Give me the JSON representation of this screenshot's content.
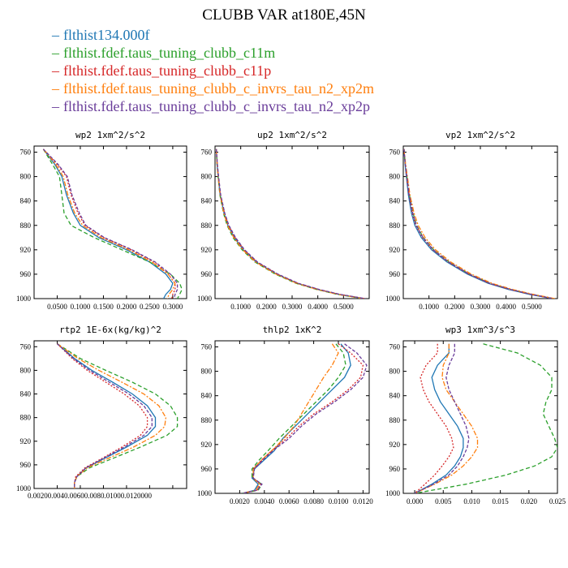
{
  "title": "CLUBB VAR at180E,45N",
  "legend": [
    {
      "label": "flthist134.000f",
      "color": "#1f77b4"
    },
    {
      "label": "flthist.fdef.taus_tuning_clubb_c11m",
      "color": "#2ca02c"
    },
    {
      "label": "flthist.fdef.taus_tuning_clubb_c11p",
      "color": "#d62728"
    },
    {
      "label": "flthist.fdef.taus_tuning_clubb_c_invrs_tau_n2_xp2m",
      "color": "#ff7f0e"
    },
    {
      "label": "flthist.fdef.taus_tuning_clubb_c_invrs_tau_n2_xp2p",
      "color": "#6a3d9a"
    }
  ],
  "chart_data": [
    {
      "type": "line",
      "title": "wp2  1xm^2/s^2",
      "ylim": [
        1000,
        750
      ],
      "yticks": [
        760,
        800,
        840,
        880,
        920,
        960,
        1000
      ],
      "xlim": [
        0.0,
        0.33
      ],
      "xticks": [
        "0.0500",
        "0.1000",
        "0.1500",
        "0.2000",
        "0.2500",
        "0.3000"
      ],
      "xtick_values": [
        0.05,
        0.1,
        0.15,
        0.2,
        0.25,
        0.3
      ],
      "y": [
        755,
        780,
        800,
        830,
        860,
        880,
        900,
        920,
        940,
        960,
        975,
        985,
        993,
        1000
      ],
      "series": [
        {
          "values": [
            0.02,
            0.045,
            0.06,
            0.07,
            0.085,
            0.1,
            0.14,
            0.2,
            0.25,
            0.285,
            0.3,
            0.295,
            0.285,
            0.28
          ]
        },
        {
          "values": [
            0.02,
            0.04,
            0.055,
            0.06,
            0.065,
            0.08,
            0.13,
            0.19,
            0.25,
            0.295,
            0.315,
            0.32,
            0.315,
            0.31
          ]
        },
        {
          "values": [
            0.02,
            0.05,
            0.07,
            0.08,
            0.095,
            0.11,
            0.15,
            0.21,
            0.26,
            0.29,
            0.305,
            0.305,
            0.3,
            0.298
          ]
        },
        {
          "values": [
            0.02,
            0.047,
            0.063,
            0.073,
            0.088,
            0.105,
            0.145,
            0.205,
            0.255,
            0.29,
            0.305,
            0.3,
            0.292,
            0.288
          ]
        },
        {
          "values": [
            0.02,
            0.052,
            0.072,
            0.082,
            0.098,
            0.112,
            0.152,
            0.212,
            0.262,
            0.295,
            0.31,
            0.31,
            0.305,
            0.303
          ]
        }
      ]
    },
    {
      "type": "line",
      "title": "up2  1xm^2/s^2",
      "ylim": [
        1000,
        750
      ],
      "yticks": [
        760,
        800,
        840,
        880,
        920,
        960,
        1000
      ],
      "xlim": [
        0.0,
        0.6
      ],
      "xticks": [
        "0.1000",
        "0.2000",
        "0.3000",
        "0.4000",
        "0.5000"
      ],
      "xtick_values": [
        0.1,
        0.2,
        0.3,
        0.4,
        0.5
      ],
      "y": [
        755,
        780,
        800,
        830,
        860,
        880,
        900,
        920,
        940,
        960,
        975,
        985,
        993,
        1000
      ],
      "series": [
        {
          "values": [
            0.005,
            0.008,
            0.012,
            0.02,
            0.035,
            0.05,
            0.075,
            0.11,
            0.16,
            0.24,
            0.32,
            0.4,
            0.48,
            0.58
          ]
        },
        {
          "values": [
            0.005,
            0.008,
            0.012,
            0.019,
            0.033,
            0.047,
            0.07,
            0.105,
            0.155,
            0.235,
            0.315,
            0.395,
            0.475,
            0.575
          ]
        },
        {
          "values": [
            0.005,
            0.009,
            0.013,
            0.021,
            0.037,
            0.052,
            0.078,
            0.113,
            0.163,
            0.243,
            0.323,
            0.403,
            0.483,
            0.583
          ]
        },
        {
          "values": [
            0.005,
            0.008,
            0.012,
            0.02,
            0.034,
            0.049,
            0.073,
            0.108,
            0.158,
            0.238,
            0.318,
            0.398,
            0.478,
            0.578
          ]
        },
        {
          "values": [
            0.005,
            0.009,
            0.014,
            0.022,
            0.038,
            0.054,
            0.08,
            0.115,
            0.165,
            0.245,
            0.325,
            0.405,
            0.485,
            0.585
          ]
        }
      ]
    },
    {
      "type": "line",
      "title": "vp2  1xm^2/s^2",
      "ylim": [
        1000,
        750
      ],
      "yticks": [
        760,
        800,
        840,
        880,
        920,
        960,
        1000
      ],
      "xlim": [
        0.0,
        0.6
      ],
      "xticks": [
        "0.1000",
        "0.2000",
        "0.3000",
        "0.4000",
        "0.5000"
      ],
      "xtick_values": [
        0.1,
        0.2,
        0.3,
        0.4,
        0.5
      ],
      "y": [
        755,
        780,
        800,
        830,
        860,
        880,
        900,
        920,
        940,
        960,
        975,
        985,
        993,
        1000
      ],
      "series": [
        {
          "values": [
            0.003,
            0.007,
            0.012,
            0.02,
            0.032,
            0.045,
            0.07,
            0.11,
            0.17,
            0.25,
            0.33,
            0.41,
            0.49,
            0.58
          ]
        },
        {
          "values": [
            0.003,
            0.008,
            0.014,
            0.024,
            0.038,
            0.052,
            0.078,
            0.118,
            0.178,
            0.258,
            0.338,
            0.418,
            0.498,
            0.585
          ]
        },
        {
          "values": [
            0.003,
            0.008,
            0.013,
            0.022,
            0.035,
            0.049,
            0.075,
            0.115,
            0.175,
            0.255,
            0.335,
            0.415,
            0.495,
            0.582
          ]
        },
        {
          "values": [
            0.003,
            0.009,
            0.016,
            0.026,
            0.042,
            0.058,
            0.085,
            0.125,
            0.185,
            0.265,
            0.345,
            0.425,
            0.505,
            0.59
          ]
        },
        {
          "values": [
            0.003,
            0.008,
            0.014,
            0.023,
            0.037,
            0.051,
            0.077,
            0.117,
            0.177,
            0.257,
            0.337,
            0.417,
            0.497,
            0.584
          ]
        }
      ]
    },
    {
      "type": "line",
      "title": "rtp2  1E-6x(kg/kg)^2",
      "ylim": [
        1000,
        750
      ],
      "yticks": [
        760,
        800,
        840,
        880,
        920,
        960,
        1000
      ],
      "xlim": [
        0.0,
        0.0132
      ],
      "xticks": [
        "0.0020",
        "0.0040",
        "0.0060",
        "0.0080",
        "0.0100",
        "0.0120"
      ],
      "xtick_values": [
        0.002,
        0.004,
        0.006,
        0.008,
        0.01,
        0.012
      ],
      "xtick_labels": [
        "0.00200.0040.00600.0080.01000.0120000"
      ],
      "y": [
        755,
        780,
        800,
        820,
        840,
        860,
        880,
        895,
        910,
        930,
        950,
        965,
        980,
        990,
        1000
      ],
      "series": [
        {
          "values": [
            0.002,
            0.0035,
            0.005,
            0.0068,
            0.0085,
            0.0098,
            0.0105,
            0.0105,
            0.0098,
            0.008,
            0.006,
            0.0045,
            0.0037,
            0.0035,
            0.0035
          ]
        },
        {
          "values": [
            0.002,
            0.004,
            0.0062,
            0.0085,
            0.0105,
            0.0118,
            0.0124,
            0.0124,
            0.0115,
            0.0092,
            0.0067,
            0.0048,
            0.0037,
            0.0035,
            0.0035
          ]
        },
        {
          "values": [
            0.002,
            0.0033,
            0.0046,
            0.0062,
            0.0078,
            0.0091,
            0.0098,
            0.0098,
            0.0092,
            0.0076,
            0.0058,
            0.0044,
            0.0036,
            0.0035,
            0.0035
          ]
        },
        {
          "values": [
            0.002,
            0.0038,
            0.0056,
            0.0076,
            0.0095,
            0.0108,
            0.0114,
            0.0113,
            0.0105,
            0.0086,
            0.0063,
            0.0046,
            0.0037,
            0.0035,
            0.0035
          ]
        },
        {
          "values": [
            0.002,
            0.0034,
            0.0048,
            0.0065,
            0.0082,
            0.0095,
            0.0102,
            0.0102,
            0.0095,
            0.0078,
            0.0059,
            0.0045,
            0.0037,
            0.0035,
            0.0035
          ]
        }
      ]
    },
    {
      "type": "line",
      "title": "thlp2  1xK^2",
      "ylim": [
        1000,
        750
      ],
      "yticks": [
        760,
        800,
        840,
        880,
        920,
        960,
        1000
      ],
      "xlim": [
        0.0,
        0.0125
      ],
      "xticks": [
        "0.0020",
        "0.0040",
        "0.0060",
        "0.0080",
        "0.0100",
        "0.0120"
      ],
      "xtick_values": [
        0.002,
        0.004,
        0.006,
        0.008,
        0.01,
        0.012
      ],
      "y": [
        755,
        770,
        790,
        810,
        830,
        850,
        870,
        890,
        910,
        930,
        945,
        960,
        975,
        985,
        995,
        1000
      ],
      "series": [
        {
          "values": [
            0.0102,
            0.0108,
            0.011,
            0.0105,
            0.0095,
            0.0085,
            0.0075,
            0.0065,
            0.0055,
            0.0048,
            0.004,
            0.0032,
            0.003,
            0.0035,
            0.0032,
            0.0022
          ]
        },
        {
          "values": [
            0.0098,
            0.0104,
            0.0106,
            0.01,
            0.0092,
            0.0082,
            0.0072,
            0.0062,
            0.0052,
            0.0043,
            0.0036,
            0.003,
            0.003,
            0.0038,
            0.0035,
            0.0022
          ]
        },
        {
          "values": [
            0.01,
            0.011,
            0.012,
            0.0118,
            0.0108,
            0.0095,
            0.008,
            0.0068,
            0.0058,
            0.0046,
            0.0038,
            0.0031,
            0.0031,
            0.0037,
            0.0034,
            0.0022
          ]
        },
        {
          "values": [
            0.0095,
            0.01,
            0.0095,
            0.0088,
            0.0082,
            0.0076,
            0.007,
            0.0064,
            0.0056,
            0.0046,
            0.0038,
            0.0031,
            0.0031,
            0.0036,
            0.0033,
            0.0022
          ]
        },
        {
          "values": [
            0.0105,
            0.0115,
            0.0123,
            0.012,
            0.011,
            0.0097,
            0.0082,
            0.007,
            0.006,
            0.0047,
            0.0039,
            0.0032,
            0.0031,
            0.0038,
            0.0034,
            0.0022
          ]
        }
      ]
    },
    {
      "type": "line",
      "title": "wp3  1xm^3/s^3",
      "ylim": [
        1000,
        750
      ],
      "yticks": [
        760,
        800,
        840,
        880,
        920,
        960,
        1000
      ],
      "xlim": [
        -0.002,
        0.025
      ],
      "xticks": [
        "0.000",
        "0.005",
        "0.010",
        "0.015",
        "0.020",
        "0.025"
      ],
      "xtick_values": [
        0.0,
        0.005,
        0.01,
        0.015,
        0.02,
        0.025
      ],
      "y": [
        755,
        770,
        790,
        810,
        830,
        850,
        870,
        890,
        910,
        925,
        940,
        955,
        970,
        985,
        1000
      ],
      "series": [
        {
          "values": [
            0.006,
            0.006,
            0.004,
            0.003,
            0.0035,
            0.0045,
            0.006,
            0.0075,
            0.0085,
            0.0085,
            0.008,
            0.007,
            0.0055,
            0.003,
            0.0
          ]
        },
        {
          "values": [
            0.012,
            0.018,
            0.022,
            0.024,
            0.024,
            0.023,
            0.0225,
            0.0235,
            0.0245,
            0.025,
            0.024,
            0.021,
            0.016,
            0.009,
            0.0
          ]
        },
        {
          "values": [
            0.004,
            0.004,
            0.002,
            0.001,
            0.0015,
            0.0025,
            0.004,
            0.0055,
            0.0065,
            0.0068,
            0.006,
            0.0048,
            0.0035,
            0.0018,
            0.0
          ]
        },
        {
          "values": [
            0.006,
            0.006,
            0.005,
            0.0048,
            0.0055,
            0.007,
            0.0085,
            0.01,
            0.011,
            0.011,
            0.01,
            0.0085,
            0.0065,
            0.0035,
            0.0
          ]
        },
        {
          "values": [
            0.007,
            0.007,
            0.006,
            0.0055,
            0.006,
            0.007,
            0.008,
            0.009,
            0.0095,
            0.0092,
            0.0085,
            0.0075,
            0.006,
            0.0033,
            0.0
          ]
        }
      ]
    }
  ]
}
